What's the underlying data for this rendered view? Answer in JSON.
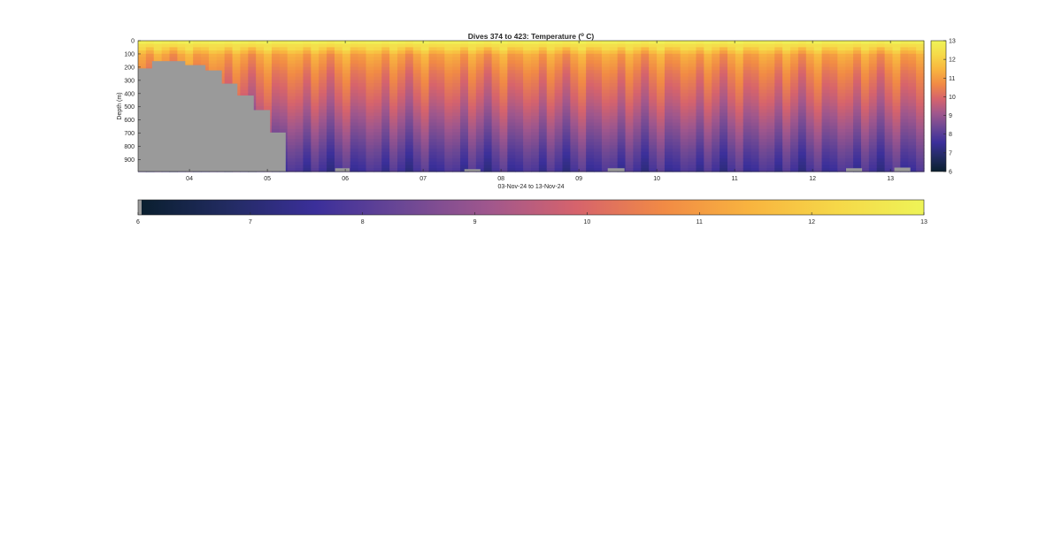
{
  "chart_data": {
    "type": "heatmap",
    "title_main": "Dives 374 to 423: Temperature (",
    "title_unit_sup": "o",
    "title_unit_end": " C)",
    "xlabel": "03-Nov-24 to 13-Nov-24",
    "ylabel": "Depth (m)",
    "x_range_days": [
      3.34,
      13.43
    ],
    "x_ticks": [
      {
        "value": 4,
        "label": "04"
      },
      {
        "value": 5,
        "label": "05"
      },
      {
        "value": 6,
        "label": "06"
      },
      {
        "value": 7,
        "label": "07"
      },
      {
        "value": 8,
        "label": "08"
      },
      {
        "value": 9,
        "label": "09"
      },
      {
        "value": 10,
        "label": "10"
      },
      {
        "value": 11,
        "label": "11"
      },
      {
        "value": 12,
        "label": "12"
      },
      {
        "value": 13,
        "label": "13"
      }
    ],
    "y_range_m": [
      0,
      990
    ],
    "y_reversed": true,
    "y_ticks": [
      {
        "value": 0,
        "label": "0"
      },
      {
        "value": 100,
        "label": "100"
      },
      {
        "value": 200,
        "label": "200"
      },
      {
        "value": 300,
        "label": "300"
      },
      {
        "value": 400,
        "label": "400"
      },
      {
        "value": 500,
        "label": "500"
      },
      {
        "value": 600,
        "label": "600"
      },
      {
        "value": 700,
        "label": "700"
      },
      {
        "value": 800,
        "label": "800"
      },
      {
        "value": 900,
        "label": "900"
      }
    ],
    "color_range_c": [
      6,
      13
    ],
    "colormap": [
      "#0a1f2f",
      "#222b62",
      "#3b2f9a",
      "#6b4795",
      "#a0578d",
      "#d6636c",
      "#f18a45",
      "#f8b43f",
      "#f6d848",
      "#eef457"
    ],
    "colorbar_right_ticks": [
      "6",
      "7",
      "8",
      "9",
      "10",
      "11",
      "12",
      "13"
    ],
    "colorbar_bottom_ticks": [
      "6",
      "7",
      "8",
      "9",
      "10",
      "11",
      "12",
      "13"
    ],
    "no_data_color": "#9a9a9a",
    "bathymetry_mask_m": [
      {
        "x_start": 3.34,
        "x_end": 3.52,
        "depth_top": 210
      },
      {
        "x_start": 3.52,
        "x_end": 3.94,
        "depth_top": 155
      },
      {
        "x_start": 3.94,
        "x_end": 4.2,
        "depth_top": 185
      },
      {
        "x_start": 4.2,
        "x_end": 4.41,
        "depth_top": 225
      },
      {
        "x_start": 4.41,
        "x_end": 4.61,
        "depth_top": 325
      },
      {
        "x_start": 4.61,
        "x_end": 4.82,
        "depth_top": 415
      },
      {
        "x_start": 4.82,
        "x_end": 5.03,
        "depth_top": 525
      },
      {
        "x_start": 5.03,
        "x_end": 5.23,
        "depth_top": 695
      }
    ],
    "bottom_patches_m": [
      {
        "x_start": 5.87,
        "x_end": 6.05,
        "depth_top": 965
      },
      {
        "x_start": 7.53,
        "x_end": 7.73,
        "depth_top": 972
      },
      {
        "x_start": 9.37,
        "x_end": 9.58,
        "depth_top": 965
      },
      {
        "x_start": 12.43,
        "x_end": 12.63,
        "depth_top": 965
      },
      {
        "x_start": 13.05,
        "x_end": 13.25,
        "depth_top": 960
      }
    ],
    "profile_pattern": {
      "dive_count": 50,
      "thermocline_base_c": [
        13.0,
        12.3,
        11.0,
        10.3,
        9.6,
        8.8,
        8.0,
        7.5
      ],
      "depth_nodes_m": [
        0,
        40,
        110,
        250,
        450,
        650,
        850,
        990
      ],
      "column_offsets_c": [
        0.3,
        -0.2,
        0.5,
        0.1,
        -0.4,
        0.2,
        0.6,
        -0.1,
        0.0,
        0.4
      ]
    }
  }
}
